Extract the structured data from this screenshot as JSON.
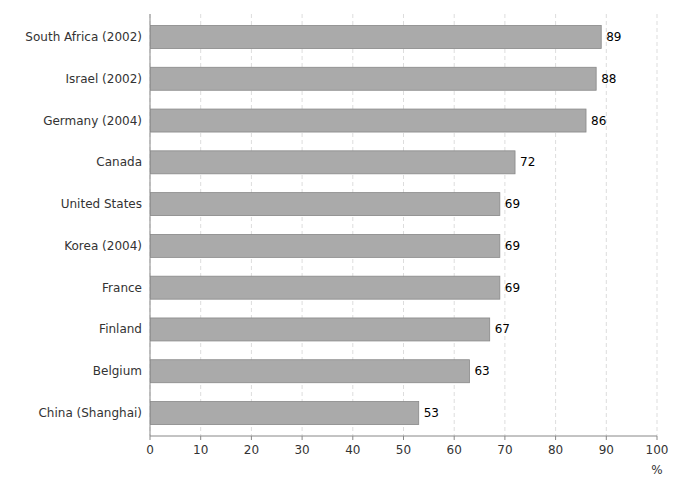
{
  "chart_data": {
    "type": "bar",
    "orientation": "horizontal",
    "categories": [
      "China (Shanghai)",
      "Belgium",
      "Finland",
      "France",
      "Korea (2004)",
      "United States",
      "Canada",
      "Germany (2004)",
      "Israel (2002)",
      "South Africa (2002)"
    ],
    "values": [
      53,
      63,
      67,
      69,
      69,
      69,
      72,
      86,
      88,
      89
    ],
    "color": "#aaaaaa",
    "xlim": [
      0,
      100
    ],
    "xticks": [
      0,
      10,
      20,
      30,
      40,
      50,
      60,
      70,
      80,
      90,
      100
    ],
    "x_label": "%",
    "grid": true,
    "data_labels": true
  }
}
